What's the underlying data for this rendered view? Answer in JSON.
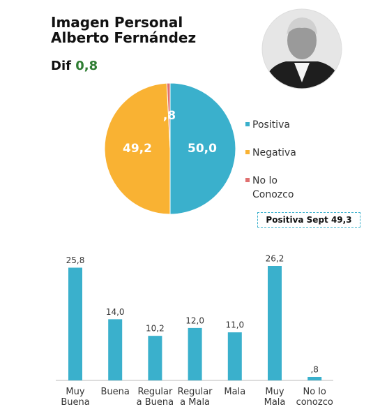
{
  "header": {
    "title_line1": "Imagen Personal",
    "title_line2": "Alberto Fernández",
    "dif_label": "Dif",
    "dif_value": "0,8"
  },
  "chart_data": [
    {
      "type": "pie",
      "categories": [
        "Positiva",
        "Negativa",
        "No lo Conozco"
      ],
      "values": [
        50.0,
        49.2,
        0.8
      ],
      "value_labels": [
        "50,0",
        "49,2",
        ",8"
      ],
      "colors": [
        "#3ab0cc",
        "#f9b233",
        "#e07070"
      ],
      "annotation": "Positiva Sept 49,3"
    },
    {
      "type": "bar",
      "categories": [
        "Muy Buena",
        "Buena",
        "Regular a Buena",
        "Regular a Mala",
        "Mala",
        "Muy Mala",
        "No lo conozco"
      ],
      "values": [
        25.8,
        14.0,
        10.2,
        12.0,
        11.0,
        26.2,
        0.8
      ],
      "value_labels": [
        "25,8",
        "14,0",
        "10,2",
        "12,0",
        "11,0",
        "26,2",
        ",8"
      ],
      "color": "#3ab0cc"
    }
  ]
}
